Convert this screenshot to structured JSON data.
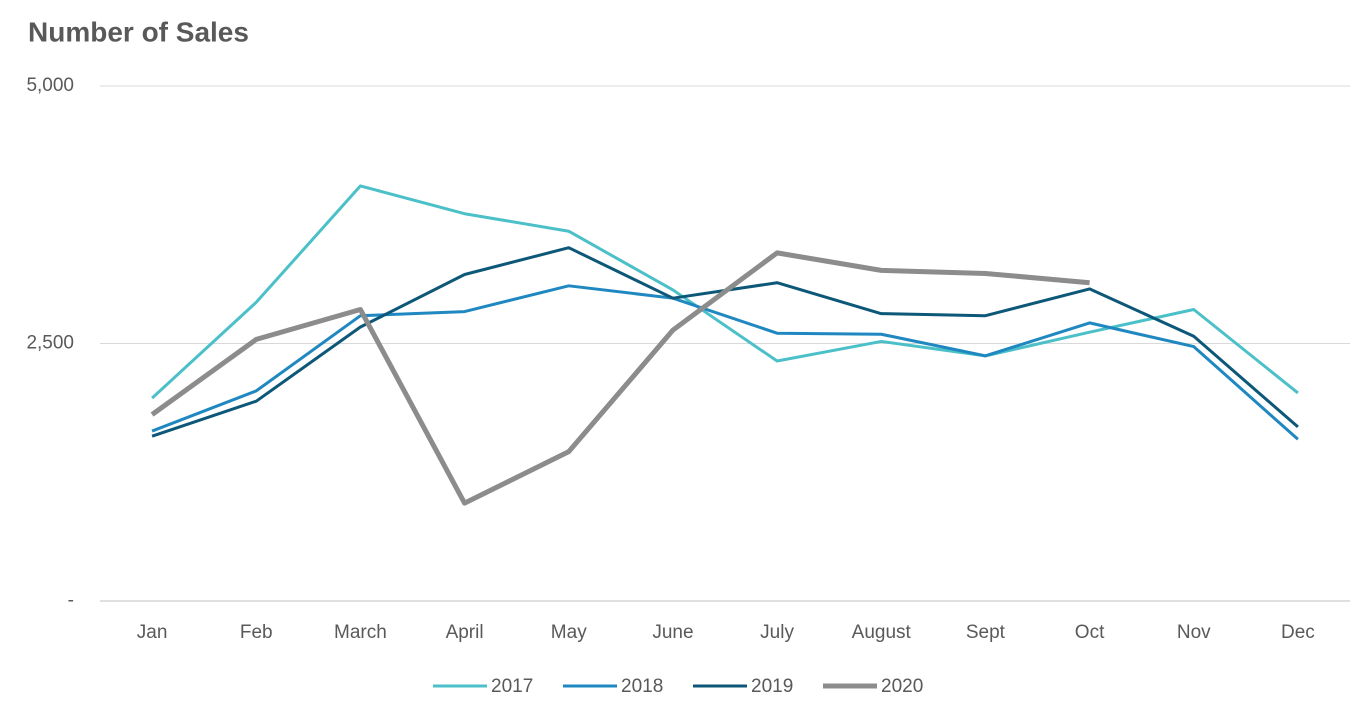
{
  "chart_data": {
    "type": "line",
    "title": "Number of Sales",
    "categories": [
      "Jan",
      "Feb",
      "March",
      "April",
      "May",
      "June",
      "July",
      "August",
      "Sept",
      "Oct",
      "Nov",
      "Dec"
    ],
    "series": [
      {
        "name": "2017",
        "color": "#4bc0c8",
        "values": [
          1970,
          2900,
          4030,
          3760,
          3590,
          3020,
          2330,
          2520,
          2380,
          2610,
          2830,
          2020
        ]
      },
      {
        "name": "2018",
        "color": "#1f88c0",
        "values": [
          1650,
          2040,
          2770,
          2810,
          3060,
          2940,
          2600,
          2590,
          2380,
          2700,
          2470,
          1570
        ]
      },
      {
        "name": "2019",
        "color": "#0d5878",
        "values": [
          1600,
          1940,
          2660,
          3170,
          3430,
          2940,
          3090,
          2790,
          2770,
          3030,
          2570,
          1690
        ]
      },
      {
        "name": "2020",
        "color": "#8c8c8c",
        "values": [
          1810,
          2540,
          2830,
          950,
          1450,
          2630,
          3380,
          3210,
          3180,
          3090,
          null,
          null
        ]
      }
    ],
    "ylim": [
      0,
      5000
    ],
    "yticks": [
      {
        "value": 0,
        "label": "-"
      },
      {
        "value": 2500,
        "label": "2,500"
      },
      {
        "value": 5000,
        "label": "5,000"
      }
    ],
    "grid": true,
    "legend": "bottom"
  }
}
